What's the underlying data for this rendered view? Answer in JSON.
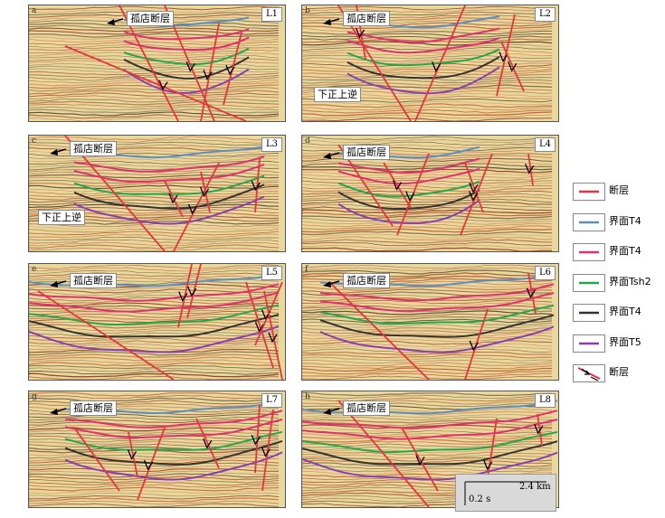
{
  "panels": [
    {
      "label": "a",
      "line": "L1",
      "fault_callout": "孤店断层",
      "extra_callout": ""
    },
    {
      "label": "b",
      "line": "L2",
      "fault_callout": "孤店断层",
      "extra_callout": "下正上逆"
    },
    {
      "label": "c",
      "line": "L3",
      "fault_callout": "孤店断层",
      "extra_callout": "下正上逆"
    },
    {
      "label": "d",
      "line": "L4",
      "fault_callout": "孤店断层",
      "extra_callout": ""
    },
    {
      "label": "e",
      "line": "L5",
      "fault_callout": "孤店断层",
      "extra_callout": ""
    },
    {
      "label": "f",
      "line": "L6",
      "fault_callout": "孤店断层",
      "extra_callout": ""
    },
    {
      "label": "g",
      "line": "L7",
      "fault_callout": "孤店断层",
      "extra_callout": ""
    },
    {
      "label": "h",
      "line": "L8",
      "fault_callout": "孤店断层",
      "extra_callout": ""
    }
  ],
  "legend": [
    {
      "text": "断层",
      "color": "#e8323c",
      "kind": "line"
    },
    {
      "text": "界面T4",
      "color": "#5b8fc0",
      "kind": "line"
    },
    {
      "text": "界面T4",
      "color": "#e0306e",
      "kind": "line"
    },
    {
      "text": "界面Tsh2",
      "color": "#22a84a",
      "kind": "line"
    },
    {
      "text": "界面T4",
      "color": "#333333",
      "kind": "line"
    },
    {
      "text": "界面T5",
      "color": "#8a3fb0",
      "kind": "line"
    },
    {
      "text": "断层",
      "color": "#e8323c",
      "kind": "fault-arrow"
    }
  ],
  "scale": {
    "horizontal": "2.4 km",
    "vertical": "0.2 s"
  }
}
